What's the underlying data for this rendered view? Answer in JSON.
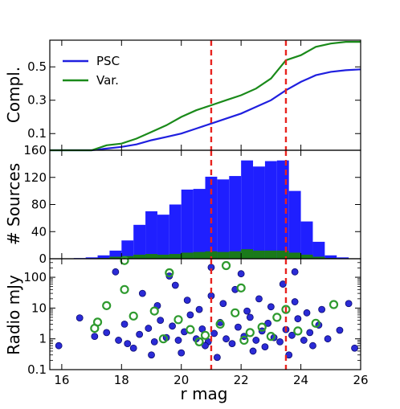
{
  "chart_data": [
    {
      "panel": "completeness",
      "type": "line",
      "ylabel": "Compl.",
      "xlim": [
        15.6,
        26.0
      ],
      "ylim": [
        0.0,
        0.66
      ],
      "yticks": [
        {
          "v": 0.1,
          "label": "0.1"
        },
        {
          "v": 0.3,
          "label": "0.3"
        },
        {
          "v": 0.5,
          "label": "0.5"
        }
      ],
      "legend_position": "top-left",
      "series": [
        {
          "name": "PSC",
          "color": "#1f1fdf",
          "x": [
            15.6,
            16.5,
            17.0,
            17.5,
            18.0,
            18.5,
            19.0,
            19.5,
            20.0,
            20.5,
            21.0,
            21.5,
            22.0,
            22.5,
            23.0,
            23.5,
            24.0,
            24.5,
            25.0,
            25.5,
            26.0
          ],
          "y": [
            0.0,
            0.0,
            0.0,
            0.01,
            0.02,
            0.035,
            0.06,
            0.08,
            0.1,
            0.13,
            0.16,
            0.19,
            0.22,
            0.26,
            0.3,
            0.36,
            0.41,
            0.45,
            0.47,
            0.48,
            0.485
          ]
        },
        {
          "name": "Var.",
          "color": "#1a8a1a",
          "x": [
            15.6,
            16.5,
            17.0,
            17.5,
            18.0,
            18.5,
            19.0,
            19.5,
            20.0,
            20.5,
            21.0,
            21.5,
            22.0,
            22.5,
            23.0,
            23.5,
            24.0,
            24.5,
            25.0,
            25.5,
            26.0
          ],
          "y": [
            0.0,
            0.0,
            0.0,
            0.03,
            0.04,
            0.07,
            0.11,
            0.15,
            0.2,
            0.24,
            0.27,
            0.3,
            0.33,
            0.37,
            0.43,
            0.54,
            0.57,
            0.62,
            0.64,
            0.65,
            0.65
          ]
        }
      ],
      "vlines": [
        21.0,
        23.5
      ]
    },
    {
      "panel": "histogram",
      "type": "bar",
      "ylabel": "# Sources",
      "xlim": [
        15.6,
        26.0
      ],
      "ylim": [
        0,
        160
      ],
      "yticks": [
        {
          "v": 0,
          "label": "0"
        },
        {
          "v": 40,
          "label": "40"
        },
        {
          "v": 80,
          "label": "80"
        },
        {
          "v": 120,
          "label": "120"
        },
        {
          "v": 160,
          "label": "160"
        }
      ],
      "bin_width": 0.4,
      "bin_starts": [
        16.4,
        16.8,
        17.2,
        17.6,
        18.0,
        18.4,
        18.8,
        19.2,
        19.6,
        20.0,
        20.4,
        20.8,
        21.2,
        21.6,
        22.0,
        22.4,
        22.8,
        23.2,
        23.6,
        24.0,
        24.4,
        24.8,
        25.2
      ],
      "series": [
        {
          "name": "PSC",
          "color": "#1f1fff",
          "values": [
            1,
            2,
            5,
            12,
            27,
            50,
            70,
            65,
            80,
            102,
            103,
            121,
            117,
            122,
            145,
            136,
            144,
            145,
            100,
            55,
            25,
            5,
            2
          ]
        },
        {
          "name": "Var.",
          "color": "#1a7a1a",
          "values": [
            0,
            0,
            1,
            3,
            4,
            6,
            7,
            6,
            7,
            9,
            10,
            11,
            10,
            11,
            14,
            12,
            12,
            12,
            9,
            6,
            3,
            1,
            0
          ]
        }
      ],
      "vlines": [
        21.0,
        23.5
      ]
    },
    {
      "panel": "radio",
      "type": "scatter",
      "xlabel": "r mag",
      "ylabel": "Radio mJy",
      "yscale": "log",
      "xlim": [
        15.6,
        26.0
      ],
      "ylim": [
        0.1,
        400
      ],
      "xticks": [
        16,
        18,
        20,
        22,
        24,
        26
      ],
      "yticks": [
        {
          "v": 0.1,
          "label": "0.1"
        },
        {
          "v": 1,
          "label": "1"
        },
        {
          "v": 10,
          "label": "10"
        },
        {
          "v": 100,
          "label": "100"
        }
      ],
      "series": [
        {
          "name": "PSC",
          "color": "#2b2bd6",
          "points": [
            [
              15.9,
              0.6
            ],
            [
              16.6,
              4.8
            ],
            [
              17.1,
              1.2
            ],
            [
              17.5,
              1.6
            ],
            [
              17.9,
              0.9
            ],
            [
              18.1,
              3.0
            ],
            [
              18.2,
              0.7
            ],
            [
              18.6,
              1.4
            ],
            [
              18.9,
              2.2
            ],
            [
              19.1,
              0.8
            ],
            [
              19.3,
              4.0
            ],
            [
              19.5,
              1.1
            ],
            [
              19.7,
              2.6
            ],
            [
              19.9,
              0.9
            ],
            [
              20.1,
              1.7
            ],
            [
              20.3,
              6.0
            ],
            [
              20.5,
              1.0
            ],
            [
              20.7,
              2.1
            ],
            [
              20.9,
              0.8
            ],
            [
              21.1,
              1.5
            ],
            [
              21.3,
              3.4
            ],
            [
              21.5,
              1.0
            ],
            [
              21.7,
              0.7
            ],
            [
              21.9,
              2.4
            ],
            [
              22.1,
              1.2
            ],
            [
              22.3,
              5.0
            ],
            [
              22.5,
              0.9
            ],
            [
              22.7,
              1.8
            ],
            [
              22.9,
              3.2
            ],
            [
              23.1,
              1.1
            ],
            [
              23.3,
              0.8
            ],
            [
              23.5,
              2.0
            ],
            [
              23.7,
              1.3
            ],
            [
              23.9,
              4.5
            ],
            [
              24.1,
              0.9
            ],
            [
              24.3,
              1.6
            ],
            [
              24.6,
              2.8
            ],
            [
              24.9,
              1.0
            ],
            [
              25.3,
              1.9
            ],
            [
              25.8,
              0.5
            ],
            [
              18.7,
              30
            ],
            [
              19.2,
              12
            ],
            [
              19.8,
              55
            ],
            [
              20.2,
              18
            ],
            [
              20.6,
              9
            ],
            [
              21.0,
              25
            ],
            [
              21.4,
              14
            ],
            [
              21.8,
              40
            ],
            [
              22.2,
              8
            ],
            [
              22.6,
              20
            ],
            [
              23.0,
              11
            ],
            [
              23.4,
              60
            ],
            [
              23.8,
              16
            ],
            [
              24.2,
              7
            ],
            [
              24.7,
              9
            ],
            [
              25.6,
              14
            ],
            [
              19.0,
              0.3
            ],
            [
              20.0,
              0.35
            ],
            [
              21.2,
              0.25
            ],
            [
              22.4,
              0.4
            ],
            [
              23.6,
              0.3
            ],
            [
              17.8,
              150
            ],
            [
              19.6,
              110
            ],
            [
              21.0,
              210
            ],
            [
              22.0,
              130
            ],
            [
              23.8,
              150
            ],
            [
              18.4,
              0.5
            ],
            [
              20.8,
              0.6
            ],
            [
              22.8,
              0.55
            ],
            [
              24.4,
              0.6
            ]
          ]
        },
        {
          "name": "Var.",
          "color": "#2e9a2e",
          "points": [
            [
              18.1,
              350
            ],
            [
              18.1,
              40
            ],
            [
              19.6,
              140
            ],
            [
              21.5,
              240
            ],
            [
              22.0,
              45
            ],
            [
              17.2,
              3.5
            ],
            [
              17.5,
              12
            ],
            [
              17.1,
              2.2
            ],
            [
              18.4,
              5.5
            ],
            [
              19.1,
              8
            ],
            [
              19.9,
              4.2
            ],
            [
              20.3,
              2.0
            ],
            [
              20.8,
              1.3
            ],
            [
              21.3,
              3.0
            ],
            [
              21.8,
              7
            ],
            [
              22.3,
              1.6
            ],
            [
              22.7,
              2.4
            ],
            [
              23.2,
              5
            ],
            [
              23.5,
              9
            ],
            [
              23.9,
              1.8
            ],
            [
              24.5,
              3.2
            ],
            [
              25.1,
              13
            ],
            [
              19.4,
              1.0
            ],
            [
              20.6,
              0.8
            ],
            [
              22.1,
              0.9
            ],
            [
              23.0,
              1.2
            ]
          ]
        }
      ],
      "vlines": [
        21.0,
        23.5
      ]
    }
  ]
}
